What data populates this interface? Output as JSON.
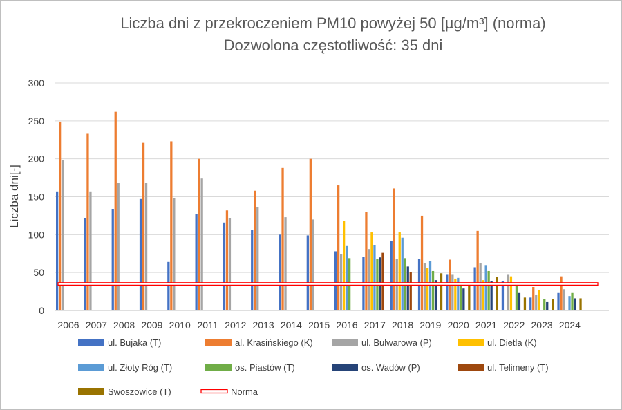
{
  "chart_data": {
    "type": "bar",
    "title": "Liczba dni z przekroczeniem PM10 powyżej 50 [µg/m³] (norma)",
    "subtitle": "Dozwolona częstotliwość: 35 dni",
    "ylabel": "Liczba dni[-]",
    "xlabel": "",
    "ylim": [
      0,
      300
    ],
    "yticks": [
      0,
      50,
      100,
      150,
      200,
      250,
      300
    ],
    "grid": true,
    "legend_position": "bottom",
    "categories": [
      "2006",
      "2007",
      "2008",
      "2009",
      "2010",
      "2011",
      "2012",
      "2013",
      "2014",
      "2015",
      "2016",
      "2017",
      "2018",
      "2019",
      "2020",
      "2021",
      "2022",
      "2023",
      "2024"
    ],
    "series": [
      {
        "name": "ul. Bujaka (T)",
        "color": "#4472C4",
        "values": [
          157,
          122,
          134,
          147,
          64,
          127,
          116,
          106,
          100,
          99,
          78,
          71,
          92,
          68,
          47,
          57,
          39,
          17,
          23
        ]
      },
      {
        "name": "al. Krasińskiego (K)",
        "color": "#ED7D31",
        "values": [
          249,
          233,
          262,
          221,
          223,
          200,
          132,
          158,
          188,
          200,
          165,
          130,
          161,
          125,
          67,
          105,
          null,
          31,
          45
        ]
      },
      {
        "name": "ul. Bulwarowa (P)",
        "color": "#A5A5A5",
        "values": [
          198,
          157,
          168,
          168,
          148,
          174,
          122,
          136,
          123,
          120,
          74,
          81,
          68,
          62,
          47,
          62,
          47,
          21,
          28
        ]
      },
      {
        "name": "ul. Dietla (K)",
        "color": "#FFC000",
        "values": [
          null,
          null,
          null,
          null,
          null,
          null,
          null,
          null,
          null,
          null,
          118,
          103,
          103,
          56,
          42,
          40,
          45,
          27,
          null
        ]
      },
      {
        "name": "ul. Złoty Róg (T)",
        "color": "#5B9BD5",
        "values": [
          null,
          null,
          null,
          null,
          null,
          null,
          null,
          null,
          null,
          null,
          85,
          86,
          96,
          65,
          43,
          59,
          null,
          null,
          19
        ]
      },
      {
        "name": "os. Piastów (T)",
        "color": "#70AD47",
        "values": [
          null,
          null,
          null,
          null,
          null,
          null,
          null,
          null,
          null,
          null,
          69,
          68,
          69,
          52,
          36,
          52,
          32,
          15,
          23
        ]
      },
      {
        "name": "os. Wadów (P)",
        "color": "#264478",
        "values": [
          null,
          null,
          null,
          null,
          null,
          null,
          null,
          null,
          null,
          null,
          null,
          70,
          58,
          40,
          29,
          39,
          23,
          11,
          16
        ]
      },
      {
        "name": "ul. Telimeny (T)",
        "color": "#9E480E",
        "values": [
          null,
          null,
          null,
          null,
          null,
          null,
          null,
          null,
          null,
          null,
          null,
          76,
          51,
          null,
          null,
          null,
          null,
          null,
          null
        ]
      },
      {
        "name": "Swoszowice (T)",
        "color": "#997300",
        "values": [
          null,
          null,
          null,
          null,
          null,
          null,
          null,
          null,
          null,
          null,
          null,
          null,
          null,
          49,
          34,
          44,
          17,
          15,
          16
        ]
      }
    ],
    "reference_line": {
      "name": "Norma",
      "value": 35,
      "color": "#FF0000"
    }
  }
}
